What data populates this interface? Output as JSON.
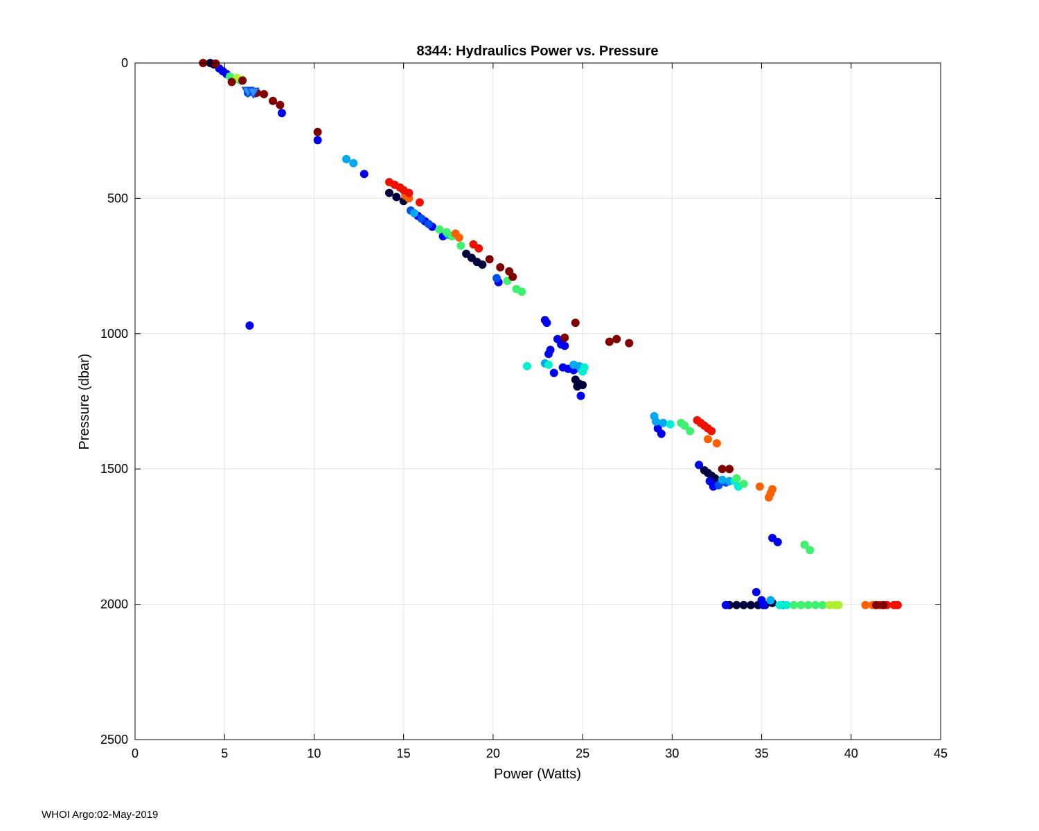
{
  "footer": "WHOI Argo:02-May-2019",
  "chart_data": {
    "type": "scatter",
    "title": "8344: Hydraulics Power vs. Pressure",
    "xlabel": "Power (Watts)",
    "ylabel": "Pressure (dbar)",
    "xlim": [
      0,
      45
    ],
    "ylim": [
      0,
      2500
    ],
    "y_reversed": true,
    "grid": true,
    "xticks": [
      0,
      5,
      10,
      15,
      20,
      25,
      30,
      35,
      40,
      45
    ],
    "yticks": [
      0,
      500,
      1000,
      1500,
      2000,
      2500
    ],
    "colormap": "jet (color = profile/cycle index, dark blue → dark red)",
    "series": [
      {
        "name": "very-dark-blue",
        "color": "#00003c",
        "points": [
          [
            4.2,
            0
          ],
          [
            4.4,
            5
          ],
          [
            6.5,
            105
          ],
          [
            14.2,
            480
          ],
          [
            14.6,
            495
          ],
          [
            15.0,
            510
          ],
          [
            18.5,
            705
          ],
          [
            18.8,
            720
          ],
          [
            19.1,
            735
          ],
          [
            19.4,
            745
          ],
          [
            24.6,
            1170
          ],
          [
            24.8,
            1185
          ],
          [
            25.0,
            1190
          ],
          [
            24.7,
            1195
          ],
          [
            31.8,
            1505
          ],
          [
            32.0,
            1515
          ],
          [
            32.2,
            1525
          ],
          [
            32.4,
            1535
          ],
          [
            33.2,
            2003
          ],
          [
            33.6,
            2003
          ],
          [
            34.0,
            2003
          ],
          [
            34.4,
            2003
          ],
          [
            34.8,
            2003
          ],
          [
            35.2,
            2003
          ],
          [
            35.6,
            1995
          ]
        ]
      },
      {
        "name": "blue",
        "color": "#0000f0",
        "points": [
          [
            4.7,
            20
          ],
          [
            4.9,
            30
          ],
          [
            5.1,
            40
          ],
          [
            8.2,
            185
          ],
          [
            10.2,
            285
          ],
          [
            12.8,
            410
          ],
          [
            6.4,
            970
          ],
          [
            15.8,
            565
          ],
          [
            16.2,
            585
          ],
          [
            16.6,
            605
          ],
          [
            17.2,
            640
          ],
          [
            20.3,
            810
          ],
          [
            22.9,
            950
          ],
          [
            23.0,
            960
          ],
          [
            23.2,
            1060
          ],
          [
            23.1,
            1075
          ],
          [
            23.6,
            1020
          ],
          [
            23.8,
            1040
          ],
          [
            24.0,
            1045
          ],
          [
            23.4,
            1145
          ],
          [
            23.9,
            1125
          ],
          [
            24.2,
            1130
          ],
          [
            24.5,
            1135
          ],
          [
            24.9,
            1230
          ],
          [
            29.2,
            1350
          ],
          [
            29.4,
            1370
          ],
          [
            31.5,
            1485
          ],
          [
            32.1,
            1545
          ],
          [
            32.3,
            1565
          ],
          [
            32.5,
            1560
          ],
          [
            33.0,
            2003
          ],
          [
            34.7,
            1955
          ],
          [
            35.0,
            1985
          ],
          [
            35.1,
            2003
          ],
          [
            35.6,
            1755
          ],
          [
            35.9,
            1770
          ]
        ]
      },
      {
        "name": "medium-blue",
        "color": "#0050f0",
        "points": [
          [
            6.3,
            110
          ],
          [
            6.7,
            112
          ],
          [
            15.4,
            545
          ],
          [
            16.0,
            575
          ],
          [
            16.4,
            595
          ],
          [
            20.2,
            795
          ],
          [
            33.0,
            1550
          ],
          [
            32.6,
            1560
          ]
        ]
      },
      {
        "name": "sky-blue",
        "color": "#00a8f0",
        "points": [
          [
            11.8,
            355
          ],
          [
            12.2,
            370
          ],
          [
            15.6,
            555
          ],
          [
            17.5,
            635
          ],
          [
            22.9,
            1110
          ],
          [
            24.5,
            1115
          ],
          [
            24.8,
            1120
          ],
          [
            24.9,
            1130
          ],
          [
            29.0,
            1305
          ],
          [
            29.1,
            1325
          ],
          [
            29.5,
            1330
          ],
          [
            32.8,
            1540
          ],
          [
            33.2,
            1545
          ],
          [
            35.5,
            1985
          ],
          [
            36.2,
            2003
          ]
        ]
      },
      {
        "name": "cyan",
        "color": "#00f0d0",
        "points": [
          [
            21.9,
            1120
          ],
          [
            23.1,
            1115
          ],
          [
            25.1,
            1125
          ],
          [
            25.0,
            1140
          ],
          [
            29.9,
            1335
          ],
          [
            33.5,
            1545
          ],
          [
            33.7,
            1565
          ],
          [
            36.0,
            2003
          ],
          [
            36.4,
            2003
          ]
        ]
      },
      {
        "name": "green",
        "color": "#40f070",
        "points": [
          [
            5.3,
            50
          ],
          [
            5.6,
            60
          ],
          [
            5.9,
            65
          ],
          [
            17.0,
            615
          ],
          [
            17.4,
            625
          ],
          [
            17.7,
            640
          ],
          [
            18.2,
            675
          ],
          [
            20.8,
            805
          ],
          [
            21.3,
            835
          ],
          [
            21.6,
            845
          ],
          [
            30.5,
            1330
          ],
          [
            30.7,
            1340
          ],
          [
            31.0,
            1360
          ],
          [
            33.6,
            1535
          ],
          [
            34.0,
            1555
          ],
          [
            37.4,
            1780
          ],
          [
            37.7,
            1800
          ],
          [
            36.8,
            2003
          ],
          [
            37.2,
            2003
          ],
          [
            37.6,
            2003
          ],
          [
            38.0,
            2003
          ],
          [
            38.4,
            2003
          ]
        ]
      },
      {
        "name": "yellow-green",
        "color": "#b0f030",
        "points": [
          [
            5.7,
            55
          ],
          [
            6.0,
            62
          ],
          [
            38.8,
            2003
          ],
          [
            39.1,
            2003
          ],
          [
            39.3,
            2003
          ]
        ]
      },
      {
        "name": "orange",
        "color": "#ff6000",
        "points": [
          [
            15.1,
            490
          ],
          [
            15.3,
            500
          ],
          [
            17.9,
            630
          ],
          [
            18.1,
            645
          ],
          [
            32.0,
            1390
          ],
          [
            32.5,
            1405
          ],
          [
            34.9,
            1565
          ],
          [
            35.5,
            1590
          ],
          [
            35.6,
            1575
          ],
          [
            35.4,
            1605
          ],
          [
            40.8,
            2003
          ],
          [
            41.2,
            2003
          ]
        ]
      },
      {
        "name": "red",
        "color": "#f01000",
        "points": [
          [
            14.2,
            440
          ],
          [
            14.5,
            450
          ],
          [
            14.8,
            460
          ],
          [
            15.0,
            470
          ],
          [
            15.3,
            480
          ],
          [
            15.9,
            515
          ],
          [
            18.9,
            670
          ],
          [
            19.2,
            685
          ],
          [
            31.4,
            1320
          ],
          [
            31.6,
            1330
          ],
          [
            31.8,
            1340
          ],
          [
            32.0,
            1350
          ],
          [
            32.2,
            1360
          ],
          [
            41.6,
            2003
          ],
          [
            42.0,
            2003
          ],
          [
            42.4,
            2003
          ],
          [
            42.6,
            2003
          ]
        ]
      },
      {
        "name": "dark-red",
        "color": "#800000",
        "points": [
          [
            3.8,
            0
          ],
          [
            4.5,
            2
          ],
          [
            6.0,
            65
          ],
          [
            5.4,
            70
          ],
          [
            6.8,
            110
          ],
          [
            7.2,
            115
          ],
          [
            7.7,
            140
          ],
          [
            8.1,
            155
          ],
          [
            10.2,
            255
          ],
          [
            19.8,
            725
          ],
          [
            20.4,
            755
          ],
          [
            20.9,
            770
          ],
          [
            21.1,
            790
          ],
          [
            24.6,
            960
          ],
          [
            24.0,
            1015
          ],
          [
            26.5,
            1030
          ],
          [
            26.9,
            1020
          ],
          [
            27.6,
            1035
          ],
          [
            32.8,
            1500
          ],
          [
            33.2,
            1500
          ],
          [
            41.4,
            2003
          ],
          [
            41.8,
            2003
          ]
        ]
      }
    ],
    "triangle_markers": {
      "color": "#1050e0",
      "points": [
        [
          6.3,
          105
        ],
        [
          6.6,
          108
        ]
      ]
    }
  }
}
